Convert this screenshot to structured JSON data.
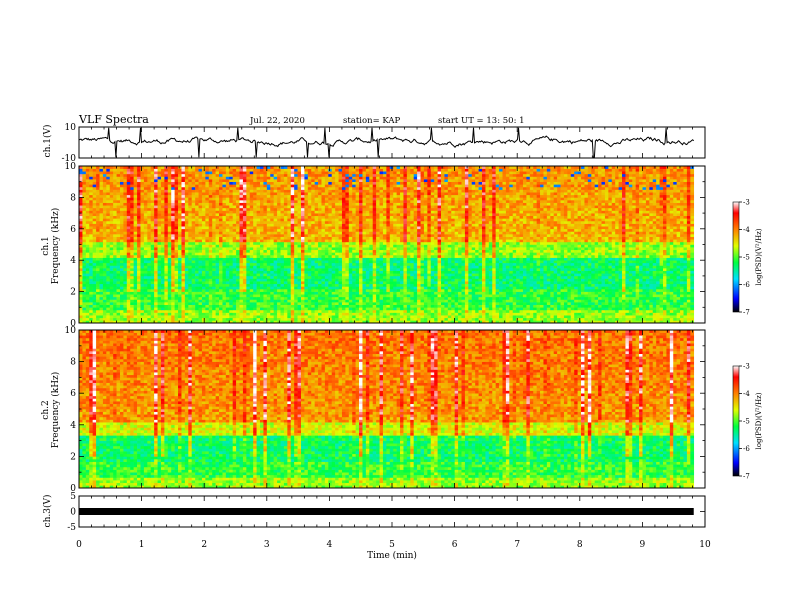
{
  "header": {
    "title": "VLF Spectra",
    "date": "Jul. 22, 2020",
    "station": "station= KAP",
    "start": "start  UT =  13: 50: 1"
  },
  "chart_data": [
    {
      "type": "line",
      "name": "ch1-waveform",
      "ylabel": "ch.1(V)",
      "ylim": [
        -10,
        10
      ],
      "yticks": [
        "10",
        "-10"
      ],
      "xlim": [
        0,
        10
      ]
    },
    {
      "type": "heatmap",
      "name": "ch1-spectrogram",
      "ylabel_line1": "ch.1",
      "ylabel_line2": "Frequency (kHz)",
      "ylim": [
        0,
        10
      ],
      "yticks": [
        "0",
        "2",
        "4",
        "6",
        "8",
        "10"
      ],
      "xlim": [
        0,
        10
      ],
      "colorbar": {
        "label": "log(PSD)(V²/Hz)",
        "range": [
          -7,
          -3
        ],
        "ticks": [
          "-3",
          "-4",
          "-5",
          "-6",
          "-7"
        ]
      }
    },
    {
      "type": "heatmap",
      "name": "ch2-spectrogram",
      "ylabel_line1": "ch.2",
      "ylabel_line2": "Frequency (kHz)",
      "ylim": [
        0,
        10
      ],
      "yticks": [
        "0",
        "2",
        "4",
        "6",
        "8",
        "10"
      ],
      "xlim": [
        0,
        10
      ],
      "colorbar": {
        "label": "log(PSD)(V²/Hz)",
        "range": [
          -7,
          -3
        ],
        "ticks": [
          "-3",
          "-4",
          "-5",
          "-6",
          "-7"
        ]
      }
    },
    {
      "type": "line",
      "name": "ch3-waveform",
      "ylabel": "ch.3(V)",
      "ylim": [
        -5,
        5
      ],
      "yticks": [
        "5",
        "0",
        "-5"
      ],
      "xlim": [
        0,
        10
      ],
      "xlabel": "Time (min)",
      "xticks": [
        "0",
        "1",
        "2",
        "3",
        "4",
        "5",
        "6",
        "7",
        "8",
        "9",
        "10"
      ]
    }
  ]
}
